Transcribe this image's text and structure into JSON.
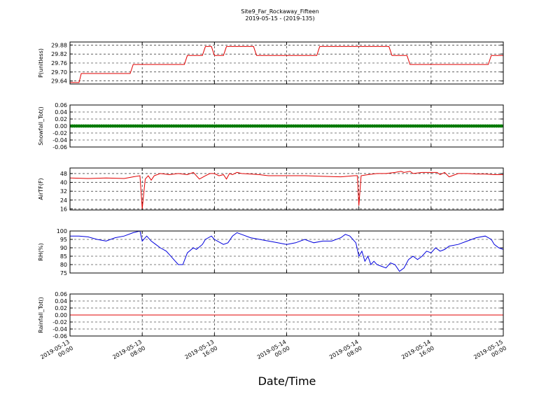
{
  "figure": {
    "title_line1": "Site9_Far_Rockaway_Fifteen",
    "title_line2": "2019-05-15 - (2019-135)",
    "xlabel": "Date/Time"
  },
  "x_axis": {
    "range": [
      "2019-05-13 00:00",
      "2019-05-15 00:00"
    ],
    "ticks": [
      {
        "t": "2019-05-13 00:00",
        "line1": "2019-05-13",
        "line2": "00:00"
      },
      {
        "t": "2019-05-13 08:00",
        "line1": "2019-05-13",
        "line2": "08:00"
      },
      {
        "t": "2019-05-13 16:00",
        "line1": "2019-05-13",
        "line2": "16:00"
      },
      {
        "t": "2019-05-14 00:00",
        "line1": "2019-05-14",
        "line2": "00:00"
      },
      {
        "t": "2019-05-14 08:00",
        "line1": "2019-05-14",
        "line2": "08:00"
      },
      {
        "t": "2019-05-14 16:00",
        "line1": "2019-05-14",
        "line2": "16:00"
      },
      {
        "t": "2019-05-15 00:00",
        "line1": "2019-05-15",
        "line2": "00:00"
      }
    ]
  },
  "chart_data": [
    {
      "type": "line",
      "ylabel": "P(unitless)",
      "ylim": [
        29.62,
        29.9
      ],
      "yticks": [
        "29.64",
        "29.70",
        "29.76",
        "29.82",
        "29.88"
      ],
      "grid": true,
      "series": [
        {
          "color": "#e00000",
          "x": [
            "2019-05-13 00:00",
            "2019-05-13 01:00",
            "2019-05-13 01:15",
            "2019-05-13 06:40",
            "2019-05-13 07:00",
            "2019-05-13 12:40",
            "2019-05-13 13:00",
            "2019-05-13 14:40",
            "2019-05-13 15:00",
            "2019-05-13 15:40",
            "2019-05-13 16:00",
            "2019-05-13 17:00",
            "2019-05-13 17:20",
            "2019-05-13 20:20",
            "2019-05-13 20:40",
            "2019-05-14 03:20",
            "2019-05-14 03:40",
            "2019-05-14 11:20",
            "2019-05-14 11:40",
            "2019-05-14 13:20",
            "2019-05-14 13:40",
            "2019-05-14 22:20",
            "2019-05-14 22:40",
            "2019-05-15 00:00"
          ],
          "y": [
            29.63,
            29.63,
            29.69,
            29.69,
            29.75,
            29.75,
            29.81,
            29.81,
            29.87,
            29.87,
            29.81,
            29.81,
            29.87,
            29.87,
            29.81,
            29.81,
            29.87,
            29.87,
            29.81,
            29.81,
            29.75,
            29.75,
            29.81,
            29.81
          ]
        }
      ]
    },
    {
      "type": "scatter",
      "ylabel": "Snowfall_Tot()",
      "ylim": [
        -0.06,
        0.06
      ],
      "yticks": [
        "-0.06",
        "-0.04",
        "-0.02",
        "0.00",
        "0.02",
        "0.04",
        "0.06"
      ],
      "grid": true,
      "series": [
        {
          "color": "#007a00",
          "x_range": [
            "2019-05-13 00:00",
            "2019-05-15 00:00"
          ],
          "interval_minutes": 15,
          "y_constant": 0.0
        }
      ]
    },
    {
      "type": "line",
      "ylabel": "AirTF(F)",
      "ylim": [
        15,
        53
      ],
      "yticks": [
        "16",
        "24",
        "32",
        "40",
        "48"
      ],
      "grid": true,
      "series": [
        {
          "color": "#e00000",
          "x": [
            "2019-05-13 00:00",
            "2019-05-13 02:00",
            "2019-05-13 04:00",
            "2019-05-13 06:00",
            "2019-05-13 07:00",
            "2019-05-13 07:45",
            "2019-05-13 08:00",
            "2019-05-13 08:20",
            "2019-05-13 08:40",
            "2019-05-13 09:00",
            "2019-05-13 09:20",
            "2019-05-13 10:00",
            "2019-05-13 11:00",
            "2019-05-13 12:00",
            "2019-05-13 13:00",
            "2019-05-13 13:40",
            "2019-05-13 14:20",
            "2019-05-13 15:00",
            "2019-05-13 15:30",
            "2019-05-13 16:00",
            "2019-05-13 16:30",
            "2019-05-13 17:00",
            "2019-05-13 17:20",
            "2019-05-13 17:40",
            "2019-05-13 18:00",
            "2019-05-13 18:30",
            "2019-05-13 19:00",
            "2019-05-13 20:00",
            "2019-05-13 21:00",
            "2019-05-13 22:00",
            "2019-05-13 23:00",
            "2019-05-14 00:00",
            "2019-05-14 02:00",
            "2019-05-14 04:00",
            "2019-05-14 06:00",
            "2019-05-14 07:30",
            "2019-05-14 07:50",
            "2019-05-14 08:00",
            "2019-05-14 08:15",
            "2019-05-14 09:00",
            "2019-05-14 10:00",
            "2019-05-14 11:00",
            "2019-05-14 12:00",
            "2019-05-14 12:40",
            "2019-05-14 13:00",
            "2019-05-14 13:40",
            "2019-05-14 14:00",
            "2019-05-14 15:00",
            "2019-05-14 16:00",
            "2019-05-14 16:40",
            "2019-05-14 17:00",
            "2019-05-14 17:30",
            "2019-05-14 18:00",
            "2019-05-14 19:00",
            "2019-05-14 20:00",
            "2019-05-14 21:00",
            "2019-05-14 22:00",
            "2019-05-14 23:00",
            "2019-05-15 00:00"
          ],
          "y": [
            44,
            43.5,
            44,
            43.5,
            45,
            46,
            16,
            43,
            46,
            42,
            46,
            48,
            47,
            48,
            47,
            49,
            43,
            46,
            48,
            48,
            46,
            47,
            43,
            48,
            47,
            49,
            48,
            47.5,
            47,
            46,
            46,
            46,
            46,
            45.5,
            45,
            46,
            46,
            19,
            46,
            47,
            48,
            48,
            49,
            50,
            49,
            50,
            48,
            49,
            49,
            49,
            47,
            49,
            45,
            48,
            48,
            47.5,
            47.5,
            47,
            47
          ]
        }
      ]
    },
    {
      "type": "line",
      "ylabel": "RH(%)",
      "ylim": [
        75,
        100
      ],
      "yticks": [
        "75",
        "80",
        "85",
        "90",
        "95",
        "100"
      ],
      "grid": true,
      "series": [
        {
          "color": "#0000dd",
          "x": [
            "2019-05-13 00:00",
            "2019-05-13 01:00",
            "2019-05-13 02:00",
            "2019-05-13 03:00",
            "2019-05-13 04:00",
            "2019-05-13 05:00",
            "2019-05-13 06:00",
            "2019-05-13 07:00",
            "2019-05-13 07:45",
            "2019-05-13 08:00",
            "2019-05-13 08:30",
            "2019-05-13 09:00",
            "2019-05-13 09:30",
            "2019-05-13 10:00",
            "2019-05-13 10:40",
            "2019-05-13 11:00",
            "2019-05-13 11:30",
            "2019-05-13 12:00",
            "2019-05-13 12:30",
            "2019-05-13 13:00",
            "2019-05-13 13:40",
            "2019-05-13 14:00",
            "2019-05-13 14:40",
            "2019-05-13 15:00",
            "2019-05-13 15:40",
            "2019-05-13 16:00",
            "2019-05-13 16:40",
            "2019-05-13 17:00",
            "2019-05-13 17:30",
            "2019-05-13 18:00",
            "2019-05-13 18:30",
            "2019-05-13 19:00",
            "2019-05-13 20:00",
            "2019-05-13 21:00",
            "2019-05-13 22:00",
            "2019-05-13 23:00",
            "2019-05-14 00:00",
            "2019-05-14 01:00",
            "2019-05-14 02:00",
            "2019-05-14 03:00",
            "2019-05-14 04:00",
            "2019-05-14 05:00",
            "2019-05-14 06:00",
            "2019-05-14 06:30",
            "2019-05-14 07:00",
            "2019-05-14 07:40",
            "2019-05-14 08:00",
            "2019-05-14 08:20",
            "2019-05-14 08:40",
            "2019-05-14 09:00",
            "2019-05-14 09:20",
            "2019-05-14 09:40",
            "2019-05-14 10:00",
            "2019-05-14 10:30",
            "2019-05-14 11:00",
            "2019-05-14 11:30",
            "2019-05-14 12:00",
            "2019-05-14 12:30",
            "2019-05-14 13:00",
            "2019-05-14 13:30",
            "2019-05-14 14:00",
            "2019-05-14 14:30",
            "2019-05-14 15:00",
            "2019-05-14 15:30",
            "2019-05-14 16:00",
            "2019-05-14 16:30",
            "2019-05-14 17:00",
            "2019-05-14 17:30",
            "2019-05-14 18:00",
            "2019-05-14 19:00",
            "2019-05-14 20:00",
            "2019-05-14 21:00",
            "2019-05-14 22:00",
            "2019-05-14 22:40",
            "2019-05-14 23:00",
            "2019-05-14 23:30",
            "2019-05-15 00:00"
          ],
          "y": [
            97,
            97,
            96.5,
            95,
            94,
            96,
            97,
            99,
            100,
            94,
            97,
            94,
            92,
            90,
            88,
            86,
            83,
            80,
            80,
            87,
            90,
            89,
            92,
            95,
            97,
            95,
            93,
            92,
            93,
            97,
            99,
            98,
            96,
            95,
            94,
            93,
            92,
            93,
            95,
            93,
            94,
            94,
            96,
            98,
            97,
            93,
            85,
            88,
            82,
            85,
            80,
            82,
            80,
            79,
            78,
            81,
            80,
            76,
            78,
            83,
            85,
            83,
            85,
            88,
            87,
            90,
            88,
            89,
            91,
            92,
            94,
            96,
            97,
            95,
            92,
            90,
            89
          ]
        }
      ]
    },
    {
      "type": "line",
      "ylabel": "Rainfall_Tot()",
      "ylim": [
        -0.06,
        0.06
      ],
      "yticks": [
        "-0.06",
        "-0.04",
        "-0.02",
        "0.00",
        "0.02",
        "0.04",
        "0.06"
      ],
      "grid": true,
      "series": [
        {
          "color": "#e00000",
          "x": [
            "2019-05-13 00:00",
            "2019-05-15 00:00"
          ],
          "y": [
            0.0,
            0.0
          ]
        }
      ]
    }
  ]
}
